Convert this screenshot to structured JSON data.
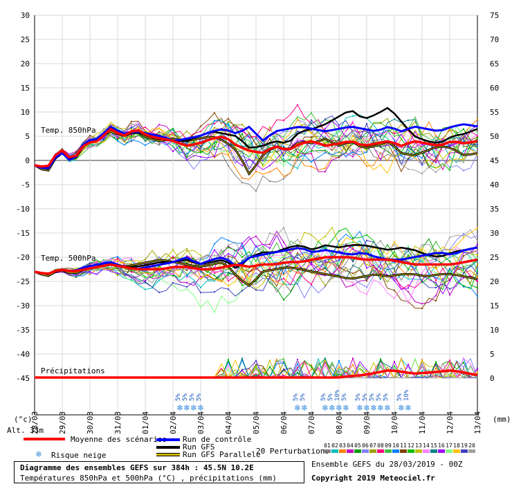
{
  "chart_data": {
    "type": "line",
    "left_axis_ticks": [
      30,
      25,
      20,
      15,
      10,
      5,
      0,
      -5,
      -10,
      -15,
      -20,
      -25,
      -30,
      -35,
      -40,
      -45
    ],
    "right_axis_ticks": [
      75,
      70,
      65,
      60,
      55,
      50,
      45,
      40,
      35,
      30,
      25,
      20,
      15,
      10,
      5,
      0
    ],
    "left_unit": "(°c)",
    "right_unit": "(mm)",
    "altitude_label": "Alt. 33m",
    "x_labels": [
      "28/03",
      "29/03",
      "30/03",
      "31/03",
      "01/04",
      "02/04",
      "03/04",
      "04/04",
      "05/04",
      "06/04",
      "07/04",
      "08/04",
      "09/04",
      "10/04",
      "11/04",
      "12/04",
      "13/04"
    ],
    "section_labels": {
      "t850": "Temp. 850hPa",
      "t500": "Temp. 500hPa",
      "precip": "Précipitations"
    },
    "t850_mean": [
      -1.0,
      -1.5,
      2.5,
      0.0,
      3.5,
      4.0,
      6.5,
      5.0,
      6.5,
      5.0,
      4.5,
      4.0,
      3.0,
      3.5,
      4.5,
      5.0,
      3.0,
      2.0,
      1.5,
      3.0,
      2.0,
      3.5,
      4.0,
      3.0,
      3.5,
      4.0,
      3.0,
      3.5,
      4.0,
      3.0,
      4.0,
      3.5,
      3.0,
      4.0,
      3.5,
      4.0
    ],
    "t850_control": [
      -1.0,
      -2.0,
      2.0,
      -0.5,
      4.0,
      4.5,
      7.0,
      5.5,
      6.0,
      5.5,
      5.0,
      4.0,
      4.5,
      5.0,
      6.0,
      6.5,
      5.5,
      7.0,
      4.0,
      6.0,
      6.5,
      7.0,
      6.5,
      6.0,
      6.5,
      7.0,
      6.5,
      6.0,
      7.0,
      6.0,
      7.0,
      6.5,
      6.0,
      7.0,
      7.5,
      7.0
    ],
    "t850_gfs": [
      -1.0,
      -2.0,
      2.5,
      0.0,
      3.5,
      4.0,
      6.5,
      5.0,
      6.0,
      5.0,
      4.5,
      4.0,
      4.0,
      5.0,
      6.0,
      5.5,
      5.0,
      2.5,
      3.0,
      4.0,
      3.5,
      6.0,
      6.5,
      7.5,
      9.0,
      10.5,
      8.5,
      9.5,
      11.0,
      8.0,
      5.0,
      4.0,
      3.5,
      5.0,
      5.5,
      6.5
    ],
    "t850_para": [
      -1.0,
      -2.5,
      2.0,
      -0.5,
      3.5,
      4.5,
      6.0,
      5.0,
      6.0,
      4.5,
      4.0,
      4.5,
      4.0,
      4.5,
      5.0,
      4.0,
      2.0,
      -3.0,
      1.0,
      3.0,
      2.0,
      4.0,
      3.5,
      4.5,
      3.0,
      4.0,
      2.5,
      3.0,
      4.0,
      1.5,
      1.0,
      2.0,
      3.0,
      2.5,
      1.0,
      1.5
    ],
    "t500_mean": [
      -23.0,
      -23.5,
      -22.5,
      -23.0,
      -22.5,
      -22.0,
      -21.5,
      -22.0,
      -22.5,
      -22.5,
      -22.5,
      -22.0,
      -22.0,
      -22.5,
      -22.5,
      -22.0,
      -21.5,
      -22.0,
      -21.5,
      -21.5,
      -21.0,
      -21.0,
      -20.5,
      -20.0,
      -20.0,
      -20.0,
      -20.5,
      -20.5,
      -20.5,
      -21.0,
      -21.5,
      -21.5,
      -21.5,
      -21.5,
      -21.0,
      -20.5
    ],
    "t500_control": [
      -23.0,
      -23.5,
      -22.5,
      -23.0,
      -22.0,
      -21.5,
      -21.0,
      -22.0,
      -22.5,
      -22.0,
      -21.5,
      -21.0,
      -20.0,
      -21.5,
      -20.5,
      -20.0,
      -22.0,
      -20.0,
      -19.5,
      -19.0,
      -18.5,
      -18.0,
      -19.0,
      -18.5,
      -19.0,
      -19.5,
      -19.0,
      -20.0,
      -20.5,
      -20.5,
      -20.0,
      -19.5,
      -19.0,
      -19.5,
      -18.5,
      -18.0
    ],
    "t500_gfs": [
      -23.0,
      -23.5,
      -22.5,
      -23.0,
      -22.0,
      -21.5,
      -21.0,
      -22.0,
      -22.0,
      -21.5,
      -21.0,
      -21.0,
      -20.5,
      -21.5,
      -21.0,
      -20.5,
      -22.5,
      -20.0,
      -19.0,
      -19.0,
      -18.0,
      -17.5,
      -18.5,
      -17.5,
      -18.0,
      -17.5,
      -17.5,
      -18.0,
      -18.5,
      -18.0,
      -18.5,
      -19.5,
      -20.0,
      -19.0,
      -18.5,
      -18.0
    ],
    "t500_para": [
      -23.0,
      -24.0,
      -22.5,
      -23.5,
      -22.5,
      -22.0,
      -21.0,
      -22.0,
      -21.5,
      -21.0,
      -20.5,
      -21.0,
      -21.5,
      -22.0,
      -21.5,
      -21.0,
      -24.0,
      -26.0,
      -23.0,
      -22.5,
      -22.0,
      -22.5,
      -23.0,
      -23.5,
      -24.0,
      -24.5,
      -24.0,
      -23.5,
      -24.0,
      -23.5,
      -23.5,
      -24.0,
      -23.5,
      -23.5,
      -24.0,
      -24.5
    ],
    "precip_mean": [
      0,
      0,
      0,
      0,
      0,
      0,
      0,
      0,
      0,
      0,
      0,
      0,
      0,
      0,
      0,
      0,
      0,
      0,
      0,
      0,
      0,
      0,
      0,
      0,
      0,
      0.3,
      0.5,
      1.0,
      1.5,
      1.2,
      0.8,
      1.0,
      1.2,
      1.5,
      1.0,
      0.5
    ],
    "snow_risk": [
      {
        "x_index": 21,
        "pcts": [
          "5%",
          "5%",
          "5%",
          "5%"
        ]
      },
      {
        "x_index": 38,
        "pcts": [
          "5%",
          "5%"
        ]
      },
      {
        "x_index": 42,
        "pcts": [
          "5%",
          "5%",
          "10%",
          "5%"
        ]
      },
      {
        "x_index": 47,
        "pcts": [
          "5%",
          "5%",
          "5%"
        ]
      },
      {
        "x_index": 50,
        "pcts": [
          "5%",
          "5%"
        ]
      },
      {
        "x_index": 53,
        "pcts": [
          "5%",
          "10%"
        ]
      }
    ]
  },
  "colors": {
    "mean": "#ff0000",
    "control": "#0000ff",
    "gfs": "#000000",
    "para_outer": "#000000",
    "para_inner": "#c8b400",
    "perturbations": [
      "#808080",
      "#00c0c0",
      "#ff8000",
      "#c000c0",
      "#00a000",
      "#8080ff",
      "#a0a000",
      "#ff0080",
      "#40c040",
      "#0080ff",
      "#804000",
      "#00c000",
      "#c0c000",
      "#ff80ff",
      "#008080",
      "#a000ff",
      "#80ff80",
      "#ffc000",
      "#4040c0",
      "#a0a0a0"
    ]
  },
  "legend": {
    "mean": "Moyenne des scénarios",
    "snow": "Risque neige",
    "control": "Run de contrôle",
    "gfs": "Run GFS",
    "para": "Run GFS Parallele",
    "perturbations": "20 Perturbations",
    "pert_numbers": [
      "01",
      "02",
      "03",
      "04",
      "05",
      "06",
      "07",
      "08",
      "09",
      "10",
      "11",
      "12",
      "13",
      "14",
      "15",
      "16",
      "17",
      "18",
      "19",
      "20"
    ]
  },
  "footer": {
    "title": "Diagramme des ensembles GEFS sur 384h : 45.5N 10.2E",
    "subtitle": "Températures 850hPa et 500hPa (°C) , précipitations (mm)",
    "ensemble": "Ensemble GEFS du 28/03/2019 - 00Z",
    "copyright": "Copyright 2019 Meteociel.fr"
  }
}
